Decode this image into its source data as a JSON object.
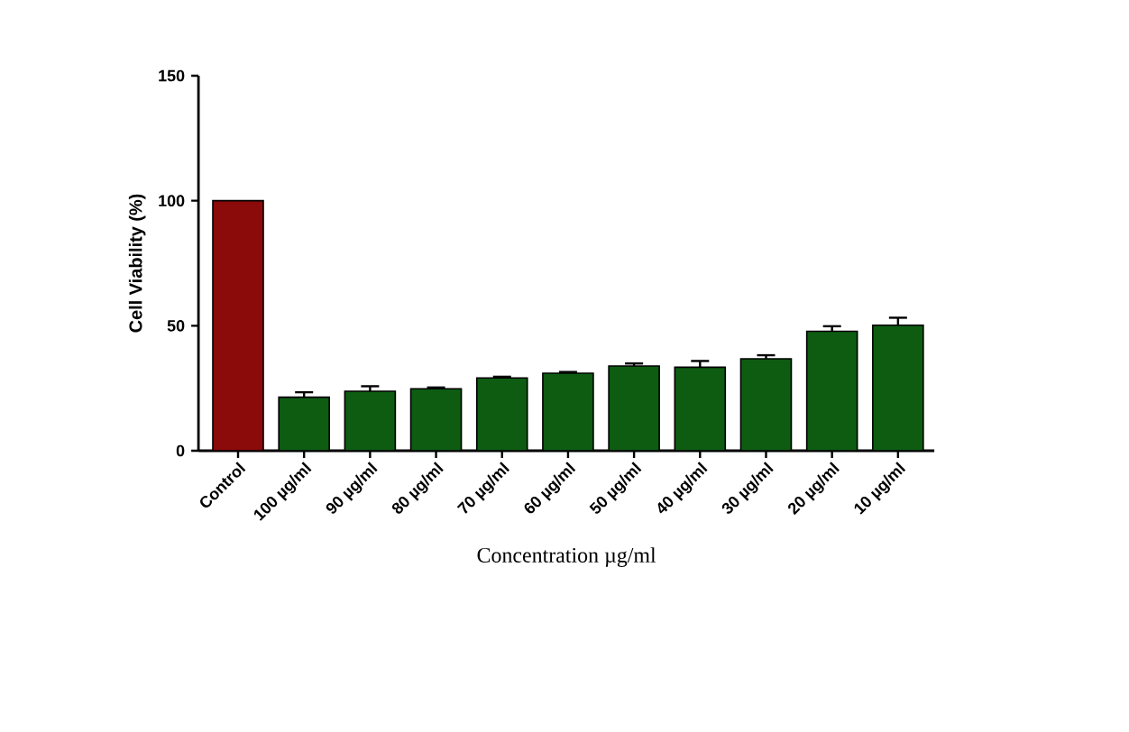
{
  "chart_data": {
    "type": "bar",
    "xlabel": "Concentration µg/ml",
    "ylabel": "Cell Viability (%)",
    "categories": [
      "Control",
      "100 µg/ml",
      "90 µg/ml",
      "80 µg/ml",
      "70 µg/ml",
      "60 µg/ml",
      "50 µg/ml",
      "40 µg/ml",
      "30 µg/ml",
      "20 µg/ml",
      "10 µg/ml"
    ],
    "values": [
      100,
      21.4,
      23.8,
      24.8,
      29.1,
      31,
      33.9,
      33.4,
      36.8,
      47.8,
      50.2
    ],
    "errors": [
      null,
      2,
      2,
      0.5,
      0.5,
      0.5,
      1,
      2.5,
      1.4,
      2,
      3
    ],
    "colors": [
      "#8b0a0a",
      "#0d5c12",
      "#0d5c12",
      "#0d5c12",
      "#0d5c12",
      "#0d5c12",
      "#0d5c12",
      "#0d5c12",
      "#0d5c12",
      "#0d5c12",
      "#0d5c12"
    ],
    "ylim": [
      0,
      150
    ],
    "yticks": [
      0,
      50,
      100,
      150
    ],
    "grid": false
  }
}
